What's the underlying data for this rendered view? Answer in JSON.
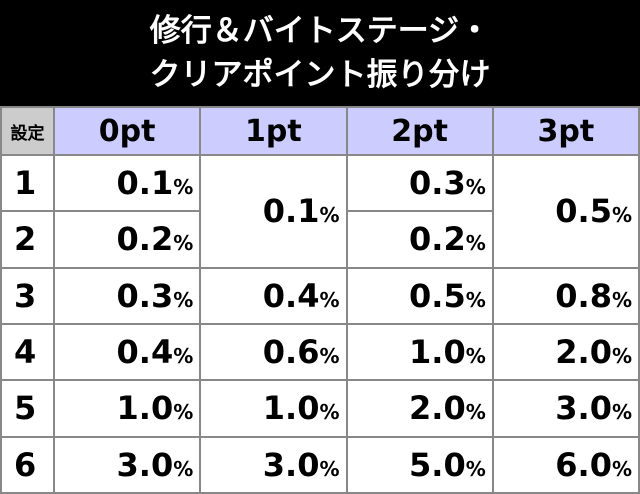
{
  "title": [
    "修行＆バイトステージ・",
    "クリアポイント振り分け"
  ],
  "table": {
    "header": [
      "設定",
      "0pt",
      "1pt",
      "2pt",
      "3pt"
    ],
    "rows": [
      [
        "1",
        "0.1%",
        "0.1%",
        "0.3%",
        "0.5%"
      ],
      [
        "2",
        "0.2%",
        null,
        "0.2%",
        null
      ],
      [
        "3",
        "0.3%",
        "0.4%",
        "0.5%",
        "0.8%"
      ],
      [
        "4",
        "0.4%",
        "0.6%",
        "1.0%",
        "2.0%"
      ],
      [
        "5",
        "1.0%",
        "1.0%",
        "2.0%",
        "3.0%"
      ],
      [
        "6",
        "3.0%",
        "3.0%",
        "5.0%",
        "6.0%"
      ]
    ]
  }
}
